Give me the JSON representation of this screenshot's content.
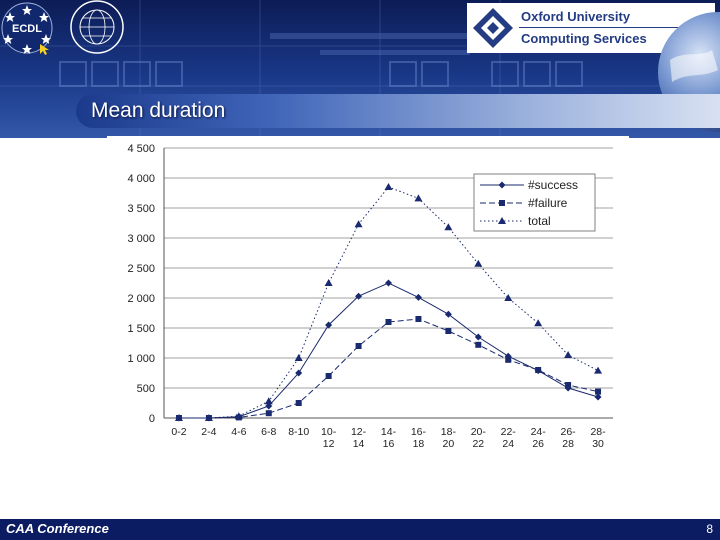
{
  "header": {
    "ecdl_logo_text": "ECDL",
    "oxford_line1": "Oxford University",
    "oxford_line2": "Computing Services"
  },
  "slide": {
    "title": "Mean duration"
  },
  "footer": {
    "text": "CAA Conference",
    "page_number": "8"
  },
  "colors": {
    "header_navy": "#0c1c56",
    "header_blue": "#3458a8",
    "footer_navy": "#0c1c62",
    "oxford_blue": "#243c84",
    "series_color": "#1a2a6e"
  },
  "chart_data": {
    "type": "line",
    "title": "",
    "xlabel": "",
    "ylabel": "",
    "categories": [
      [
        "0-2"
      ],
      [
        "2-4"
      ],
      [
        "4-6"
      ],
      [
        "6-8"
      ],
      [
        "8-10"
      ],
      [
        "10-",
        "12"
      ],
      [
        "12-",
        "14"
      ],
      [
        "14-",
        "16"
      ],
      [
        "16-",
        "18"
      ],
      [
        "18-",
        "20"
      ],
      [
        "20-",
        "22"
      ],
      [
        "22-",
        "24"
      ],
      [
        "24-",
        "26"
      ],
      [
        "26-",
        "28"
      ],
      [
        "28-",
        "30"
      ]
    ],
    "ylim": [
      0,
      4500
    ],
    "yticks": [
      "0",
      "500",
      "1 000",
      "1 500",
      "2 000",
      "2 500",
      "3 000",
      "3 500",
      "4 000",
      "4 500"
    ],
    "grid": true,
    "legend_position": "top-right",
    "series": [
      {
        "name": "#success",
        "marker": "diamond",
        "line": "solid",
        "values": [
          0,
          0,
          20,
          200,
          750,
          1550,
          2030,
          2250,
          2010,
          1730,
          1350,
          1030,
          790,
          500,
          350
        ]
      },
      {
        "name": "#failure",
        "marker": "square",
        "line": "dashed",
        "values": [
          0,
          0,
          10,
          80,
          250,
          700,
          1200,
          1600,
          1650,
          1450,
          1220,
          970,
          800,
          550,
          440
        ]
      },
      {
        "name": "total",
        "marker": "triangle",
        "line": "dotted",
        "values": [
          0,
          0,
          30,
          280,
          1000,
          2250,
          3230,
          3850,
          3660,
          3180,
          2570,
          2000,
          1580,
          1050,
          790
        ]
      }
    ]
  }
}
